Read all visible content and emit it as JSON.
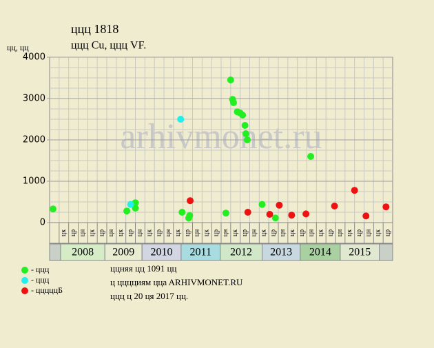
{
  "chart_data": {
    "type": "scatter",
    "title": "ццц 1818",
    "subtitle": "ццц Cu, ццц VF.",
    "y_label": "цц, цц",
    "watermark": "arhivmonet.ru",
    "ylim": [
      0,
      4000
    ],
    "yticks": [
      0,
      1000,
      2000,
      3000,
      4000
    ],
    "ygrid": [
      250,
      500,
      750,
      1250,
      1500,
      1750,
      2250,
      2500,
      2750,
      3250,
      3500,
      3750
    ],
    "xlim": [
      0,
      36
    ],
    "categories": [
      null,
      "цк",
      "цр",
      "цн",
      "цк",
      "цр",
      "цн",
      "цк",
      "цр",
      "цн",
      "цк",
      "цр",
      "цн",
      "цк",
      "цр",
      "цн",
      "цк",
      "цр",
      "цн",
      "цк",
      "цр",
      "цн",
      "цк",
      "цр",
      "цн",
      "цк",
      "цр",
      "цн",
      "цк",
      "цр",
      "цн",
      "цк",
      "цр",
      "цн",
      "цк",
      "цр"
    ],
    "years": [
      {
        "name": "2008",
        "start": 1.15,
        "end": 5.8,
        "color": "#d6ecc6"
      },
      {
        "name": "2009",
        "start": 5.8,
        "end": 9.7,
        "color": "#e8ecd0"
      },
      {
        "name": "2010",
        "start": 9.7,
        "end": 13.8,
        "color": "#d2d6e2"
      },
      {
        "name": "2011",
        "start": 13.8,
        "end": 17.9,
        "color": "#a8dce0"
      },
      {
        "name": "2012",
        "start": 17.9,
        "end": 22.3,
        "color": "#d0e8c8"
      },
      {
        "name": "2013",
        "start": 22.3,
        "end": 26.3,
        "color": "#c8d8e0"
      },
      {
        "name": "2014",
        "start": 26.3,
        "end": 30.5,
        "color": "#a8d0a0"
      },
      {
        "name": "2015",
        "start": 30.5,
        "end": 34.6,
        "color": "#e0e8d0"
      }
    ],
    "series": [
      {
        "name": "- ццц",
        "color": "#22ee22",
        "x": [
          0.36,
          8.1,
          9.0,
          9.0,
          13.9,
          14.7,
          14.6,
          18.5,
          19.0,
          19.2,
          19.3,
          19.7,
          20.0,
          20.25,
          20.5,
          20.6,
          20.75,
          22.3,
          23.7,
          27.4
        ],
        "values": [
          330,
          280,
          350,
          480,
          250,
          170,
          110,
          230,
          3450,
          2980,
          2900,
          2680,
          2650,
          2600,
          2350,
          2150,
          2000,
          440,
          110,
          1600
        ]
      },
      {
        "name": "- ццц",
        "color": "#22eeee",
        "x": [
          8.5,
          13.75
        ],
        "values": [
          440,
          2500
        ]
      },
      {
        "name": "- цццццБ",
        "color": "#ee1111",
        "x": [
          14.75,
          20.8,
          23.1,
          24.1,
          25.4,
          26.9,
          29.9,
          32.0,
          33.2,
          35.3
        ],
        "values": [
          530,
          250,
          200,
          420,
          180,
          210,
          400,
          780,
          160,
          380
        ]
      }
    ],
    "footer": [
      "ццняя цц 1091 цц",
      "ц цццциям ццa ARHIVMONET.RU",
      "ццц ц 20 ця 2017 цц."
    ]
  }
}
